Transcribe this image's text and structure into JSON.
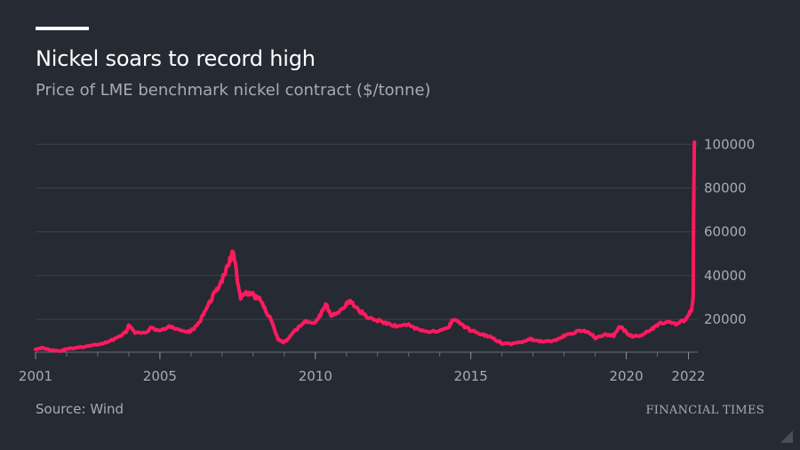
{
  "header": {
    "title": "Nickel soars to record high",
    "subtitle": "Price of LME benchmark nickel contract ($/tonne)"
  },
  "footer": {
    "source": "Source: Wind",
    "brand": "FINANCIAL TIMES"
  },
  "colors": {
    "background": "#262a33",
    "line": "#ff1a5e",
    "grid": "#3d414a",
    "text_muted": "#a9abaf",
    "title": "#ffffff"
  },
  "chart_data": {
    "type": "line",
    "title": "Nickel soars to record high",
    "subtitle": "Price of LME benchmark nickel contract ($/tonne)",
    "xlabel": "",
    "ylabel": "",
    "xlim": [
      2001.0,
      2022.3
    ],
    "ylim": [
      5000,
      105000
    ],
    "y_axis_position": "right",
    "grid": "horizontal",
    "legend": "none",
    "x_ticks": [
      {
        "value": 2001,
        "label": "2001"
      },
      {
        "value": 2005,
        "label": "2005"
      },
      {
        "value": 2010,
        "label": "2010"
      },
      {
        "value": 2015,
        "label": "2015"
      },
      {
        "value": 2020,
        "label": "2020"
      },
      {
        "value": 2022,
        "label": "2022"
      }
    ],
    "y_ticks": [
      {
        "value": 20000,
        "label": "20000"
      },
      {
        "value": 40000,
        "label": "40000"
      },
      {
        "value": 60000,
        "label": "60000"
      },
      {
        "value": 80000,
        "label": "80000"
      },
      {
        "value": 100000,
        "label": "100000"
      }
    ],
    "series": [
      {
        "x": [
          2001.0,
          2001.2,
          2001.5,
          2001.8,
          2002.0,
          2002.3,
          2002.6,
          2003.0,
          2003.3,
          2003.6,
          2003.9,
          2004.0,
          2004.2,
          2004.5,
          2004.7,
          2005.0,
          2005.3,
          2005.6,
          2005.9,
          2006.0,
          2006.2,
          2006.4,
          2006.6,
          2006.8,
          2007.0,
          2007.2,
          2007.35,
          2007.5,
          2007.6,
          2007.8,
          2008.0,
          2008.2,
          2008.4,
          2008.6,
          2008.8,
          2008.95,
          2009.1,
          2009.3,
          2009.5,
          2009.7,
          2010.0,
          2010.2,
          2010.35,
          2010.5,
          2010.8,
          2011.0,
          2011.15,
          2011.4,
          2011.7,
          2012.0,
          2012.3,
          2012.6,
          2013.0,
          2013.3,
          2013.6,
          2014.0,
          2014.3,
          2014.4,
          2014.6,
          2014.8,
          2015.0,
          2015.3,
          2015.6,
          2015.9,
          2016.0,
          2016.3,
          2016.6,
          2016.9,
          2017.0,
          2017.3,
          2017.6,
          2017.9,
          2018.0,
          2018.3,
          2018.6,
          2018.9,
          2019.0,
          2019.3,
          2019.6,
          2019.8,
          2020.0,
          2020.2,
          2020.5,
          2020.8,
          2021.0,
          2021.3,
          2021.6,
          2021.9,
          2022.0,
          2022.1,
          2022.15,
          2022.17,
          2022.19
        ],
        "y": [
          6500,
          7000,
          6000,
          5500,
          6500,
          7000,
          7500,
          8500,
          9500,
          11500,
          14000,
          17000,
          14000,
          13500,
          16000,
          15000,
          16500,
          15500,
          14000,
          15000,
          17000,
          22000,
          28000,
          33000,
          38000,
          45000,
          51000,
          38000,
          30000,
          32000,
          31000,
          29500,
          24000,
          19000,
          11000,
          9500,
          10500,
          14000,
          17000,
          19000,
          18500,
          23000,
          27000,
          22000,
          24000,
          27000,
          28000,
          24000,
          21000,
          19500,
          18000,
          17000,
          17500,
          15500,
          14500,
          14500,
          16500,
          20000,
          19000,
          16500,
          15000,
          13500,
          12000,
          10000,
          9000,
          8800,
          9500,
          11000,
          10500,
          9800,
          10000,
          11500,
          12500,
          14000,
          15000,
          13000,
          11500,
          13000,
          12500,
          17000,
          14000,
          12000,
          13000,
          15500,
          17500,
          19000,
          17500,
          20000,
          22000,
          24000,
          30000,
          75000,
          101000
        ]
      }
    ]
  }
}
